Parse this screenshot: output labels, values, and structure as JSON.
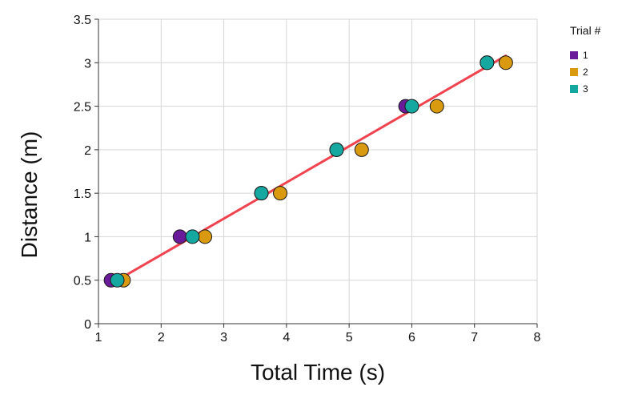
{
  "chart_data": {
    "type": "scatter",
    "xlabel": "Total Time (s)",
    "ylabel": "Distance (m)",
    "xlim": [
      1,
      8
    ],
    "ylim": [
      0,
      3.5
    ],
    "x_ticks": [
      "1",
      "2",
      "3",
      "4",
      "5",
      "6",
      "7",
      "8"
    ],
    "y_ticks": [
      "0",
      "0.5",
      "1",
      "1.5",
      "2",
      "2.5",
      "3",
      "3.5"
    ],
    "grid": true,
    "legend": {
      "title": "Trial #",
      "placement": "top-right"
    },
    "series": [
      {
        "name": "1",
        "color": "#6a1b9a",
        "points": [
          {
            "x": 1.2,
            "y": 0.5
          },
          {
            "x": 2.3,
            "y": 1.0
          },
          {
            "x": 3.6,
            "y": 1.5
          },
          {
            "x": 4.8,
            "y": 2.0
          },
          {
            "x": 5.9,
            "y": 2.5
          },
          {
            "x": 7.2,
            "y": 3.0
          }
        ]
      },
      {
        "name": "2",
        "color": "#d99a0f",
        "points": [
          {
            "x": 1.4,
            "y": 0.5
          },
          {
            "x": 2.7,
            "y": 1.0
          },
          {
            "x": 3.9,
            "y": 1.5
          },
          {
            "x": 5.2,
            "y": 2.0
          },
          {
            "x": 6.4,
            "y": 2.5
          },
          {
            "x": 7.5,
            "y": 3.0
          }
        ]
      },
      {
        "name": "3",
        "color": "#14a8a0",
        "points": [
          {
            "x": 1.3,
            "y": 0.5
          },
          {
            "x": 2.5,
            "y": 1.0
          },
          {
            "x": 3.6,
            "y": 1.5
          },
          {
            "x": 4.8,
            "y": 2.0
          },
          {
            "x": 6.0,
            "y": 2.5
          },
          {
            "x": 7.2,
            "y": 3.0
          }
        ]
      }
    ],
    "fit_line": {
      "color": "#ef4350",
      "start": {
        "x": 1.3,
        "y": 0.5
      },
      "end": {
        "x": 7.5,
        "y": 3.08
      }
    }
  }
}
